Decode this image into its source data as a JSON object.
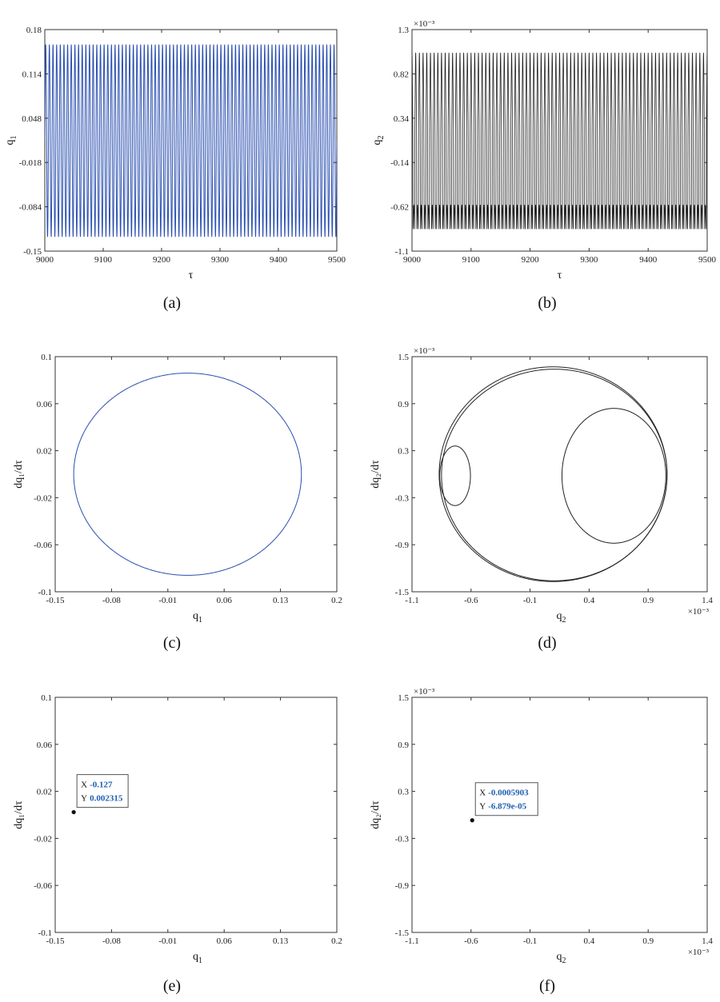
{
  "chart_data": [
    {
      "type": "line",
      "panel_label": "(a)",
      "xlabel": "τ",
      "ylabel_main": "q",
      "ylabel_sub": "1",
      "xlim": [
        9000,
        9500
      ],
      "ylim": [
        -0.15,
        0.18
      ],
      "xticks": [
        "9000",
        "9100",
        "9200",
        "9300",
        "9400",
        "9500"
      ],
      "yticks": [
        "-0.15",
        "-0.084",
        "-0.018",
        "0.048",
        "0.114",
        "0.18"
      ],
      "scale_note": "",
      "series": [
        {
          "kind": "periodic",
          "color": "#2a4fb0",
          "amplitude": 0.143,
          "offset": 0.0145,
          "cycles": 80
        }
      ]
    },
    {
      "type": "line",
      "panel_label": "(b)",
      "xlabel": "τ",
      "ylabel_main": "q",
      "ylabel_sub": "2",
      "xlim": [
        9000,
        9500
      ],
      "ylim": [
        -1.1,
        1.3
      ],
      "xticks": [
        "9000",
        "9100",
        "9200",
        "9300",
        "9400",
        "9500"
      ],
      "yticks": [
        "-1.1",
        "-0.62",
        "-0.14",
        "0.34",
        "0.82",
        "1.3"
      ],
      "scale_note": "×10⁻³",
      "series": [
        {
          "kind": "twotone",
          "color": "#222222",
          "max": 1.05,
          "min": -0.92,
          "upper_trough": 0.3,
          "lower_crest": -0.6,
          "cycles": 80
        }
      ]
    },
    {
      "type": "line",
      "panel_label": "(c)",
      "xlabel_main": "q",
      "xlabel_sub": "1",
      "ylabel": "dq₁/dτ",
      "xlim": [
        -0.15,
        0.2
      ],
      "ylim": [
        -0.1,
        0.1
      ],
      "xticks": [
        "-0.15",
        "-0.08",
        "-0.01",
        "0.06",
        "0.13",
        "0.2"
      ],
      "yticks": [
        "-0.1",
        "-0.06",
        "-0.02",
        "0.02",
        "0.06",
        "0.1"
      ],
      "scale_note": "",
      "series": [
        {
          "kind": "loop",
          "color": "#2a4fb0",
          "cx": 0.0145,
          "cy": 0.0,
          "rx": 0.1415,
          "ry": 0.086
        }
      ]
    },
    {
      "type": "line",
      "panel_label": "(d)",
      "xlabel_main": "q",
      "xlabel_sub": "2",
      "ylabel": "dq₂/dτ",
      "xlim": [
        -1.1,
        1.4
      ],
      "ylim": [
        -1.5,
        1.5
      ],
      "xticks": [
        "-1.1",
        "-0.6",
        "-0.1",
        "0.4",
        "0.9",
        "1.4"
      ],
      "yticks": [
        "-1.5",
        "-0.9",
        "-0.3",
        "0.3",
        "0.9",
        "1.5"
      ],
      "scale_note": "×10⁻³",
      "x_scale_note": "×10⁻³",
      "series": [
        {
          "kind": "loop",
          "color": "#222222",
          "cx": 0.095,
          "cy": 0.0,
          "rx": 0.965,
          "ry": 1.37
        },
        {
          "kind": "loop",
          "color": "#222222",
          "cx": 0.105,
          "cy": -0.01,
          "rx": 0.955,
          "ry": 1.35
        },
        {
          "kind": "loop",
          "color": "#222222",
          "cx": 0.61,
          "cy": -0.02,
          "rx": 0.44,
          "ry": 0.86
        },
        {
          "kind": "loop",
          "color": "#222222",
          "cx": -0.735,
          "cy": -0.02,
          "rx": 0.13,
          "ry": 0.38
        }
      ]
    },
    {
      "type": "scatter",
      "panel_label": "(e)",
      "xlabel_main": "q",
      "xlabel_sub": "1",
      "ylabel": "dq₁/dτ",
      "xlim": [
        -0.15,
        0.2
      ],
      "ylim": [
        -0.1,
        0.1
      ],
      "xticks": [
        "-0.15",
        "-0.08",
        "-0.01",
        "0.06",
        "0.13",
        "0.2"
      ],
      "yticks": [
        "-0.1",
        "-0.06",
        "-0.02",
        "0.02",
        "0.06",
        "0.1"
      ],
      "scale_note": "",
      "point": {
        "x": -0.127,
        "y": 0.002315
      },
      "datatip": {
        "x_label": "X",
        "x_value": "-0.127",
        "y_label": "Y",
        "y_value": "0.002315"
      }
    },
    {
      "type": "scatter",
      "panel_label": "(f)",
      "xlabel_main": "q",
      "xlabel_sub": "2",
      "ylabel": "dq₂/dτ",
      "xlim": [
        -1.1,
        1.4
      ],
      "ylim": [
        -1.5,
        1.5
      ],
      "xticks": [
        "-1.1",
        "-0.6",
        "-0.1",
        "0.4",
        "0.9",
        "1.4"
      ],
      "yticks": [
        "-1.5",
        "-0.9",
        "-0.3",
        "0.3",
        "0.9",
        "1.5"
      ],
      "scale_note": "×10⁻³",
      "x_scale_note": "×10⁻³",
      "point": {
        "x": -0.5903,
        "y": -0.06879
      },
      "datatip": {
        "x_label": "X",
        "x_value": "-0.0005903",
        "y_label": "Y",
        "y_value": "-6.879e-05"
      }
    }
  ]
}
